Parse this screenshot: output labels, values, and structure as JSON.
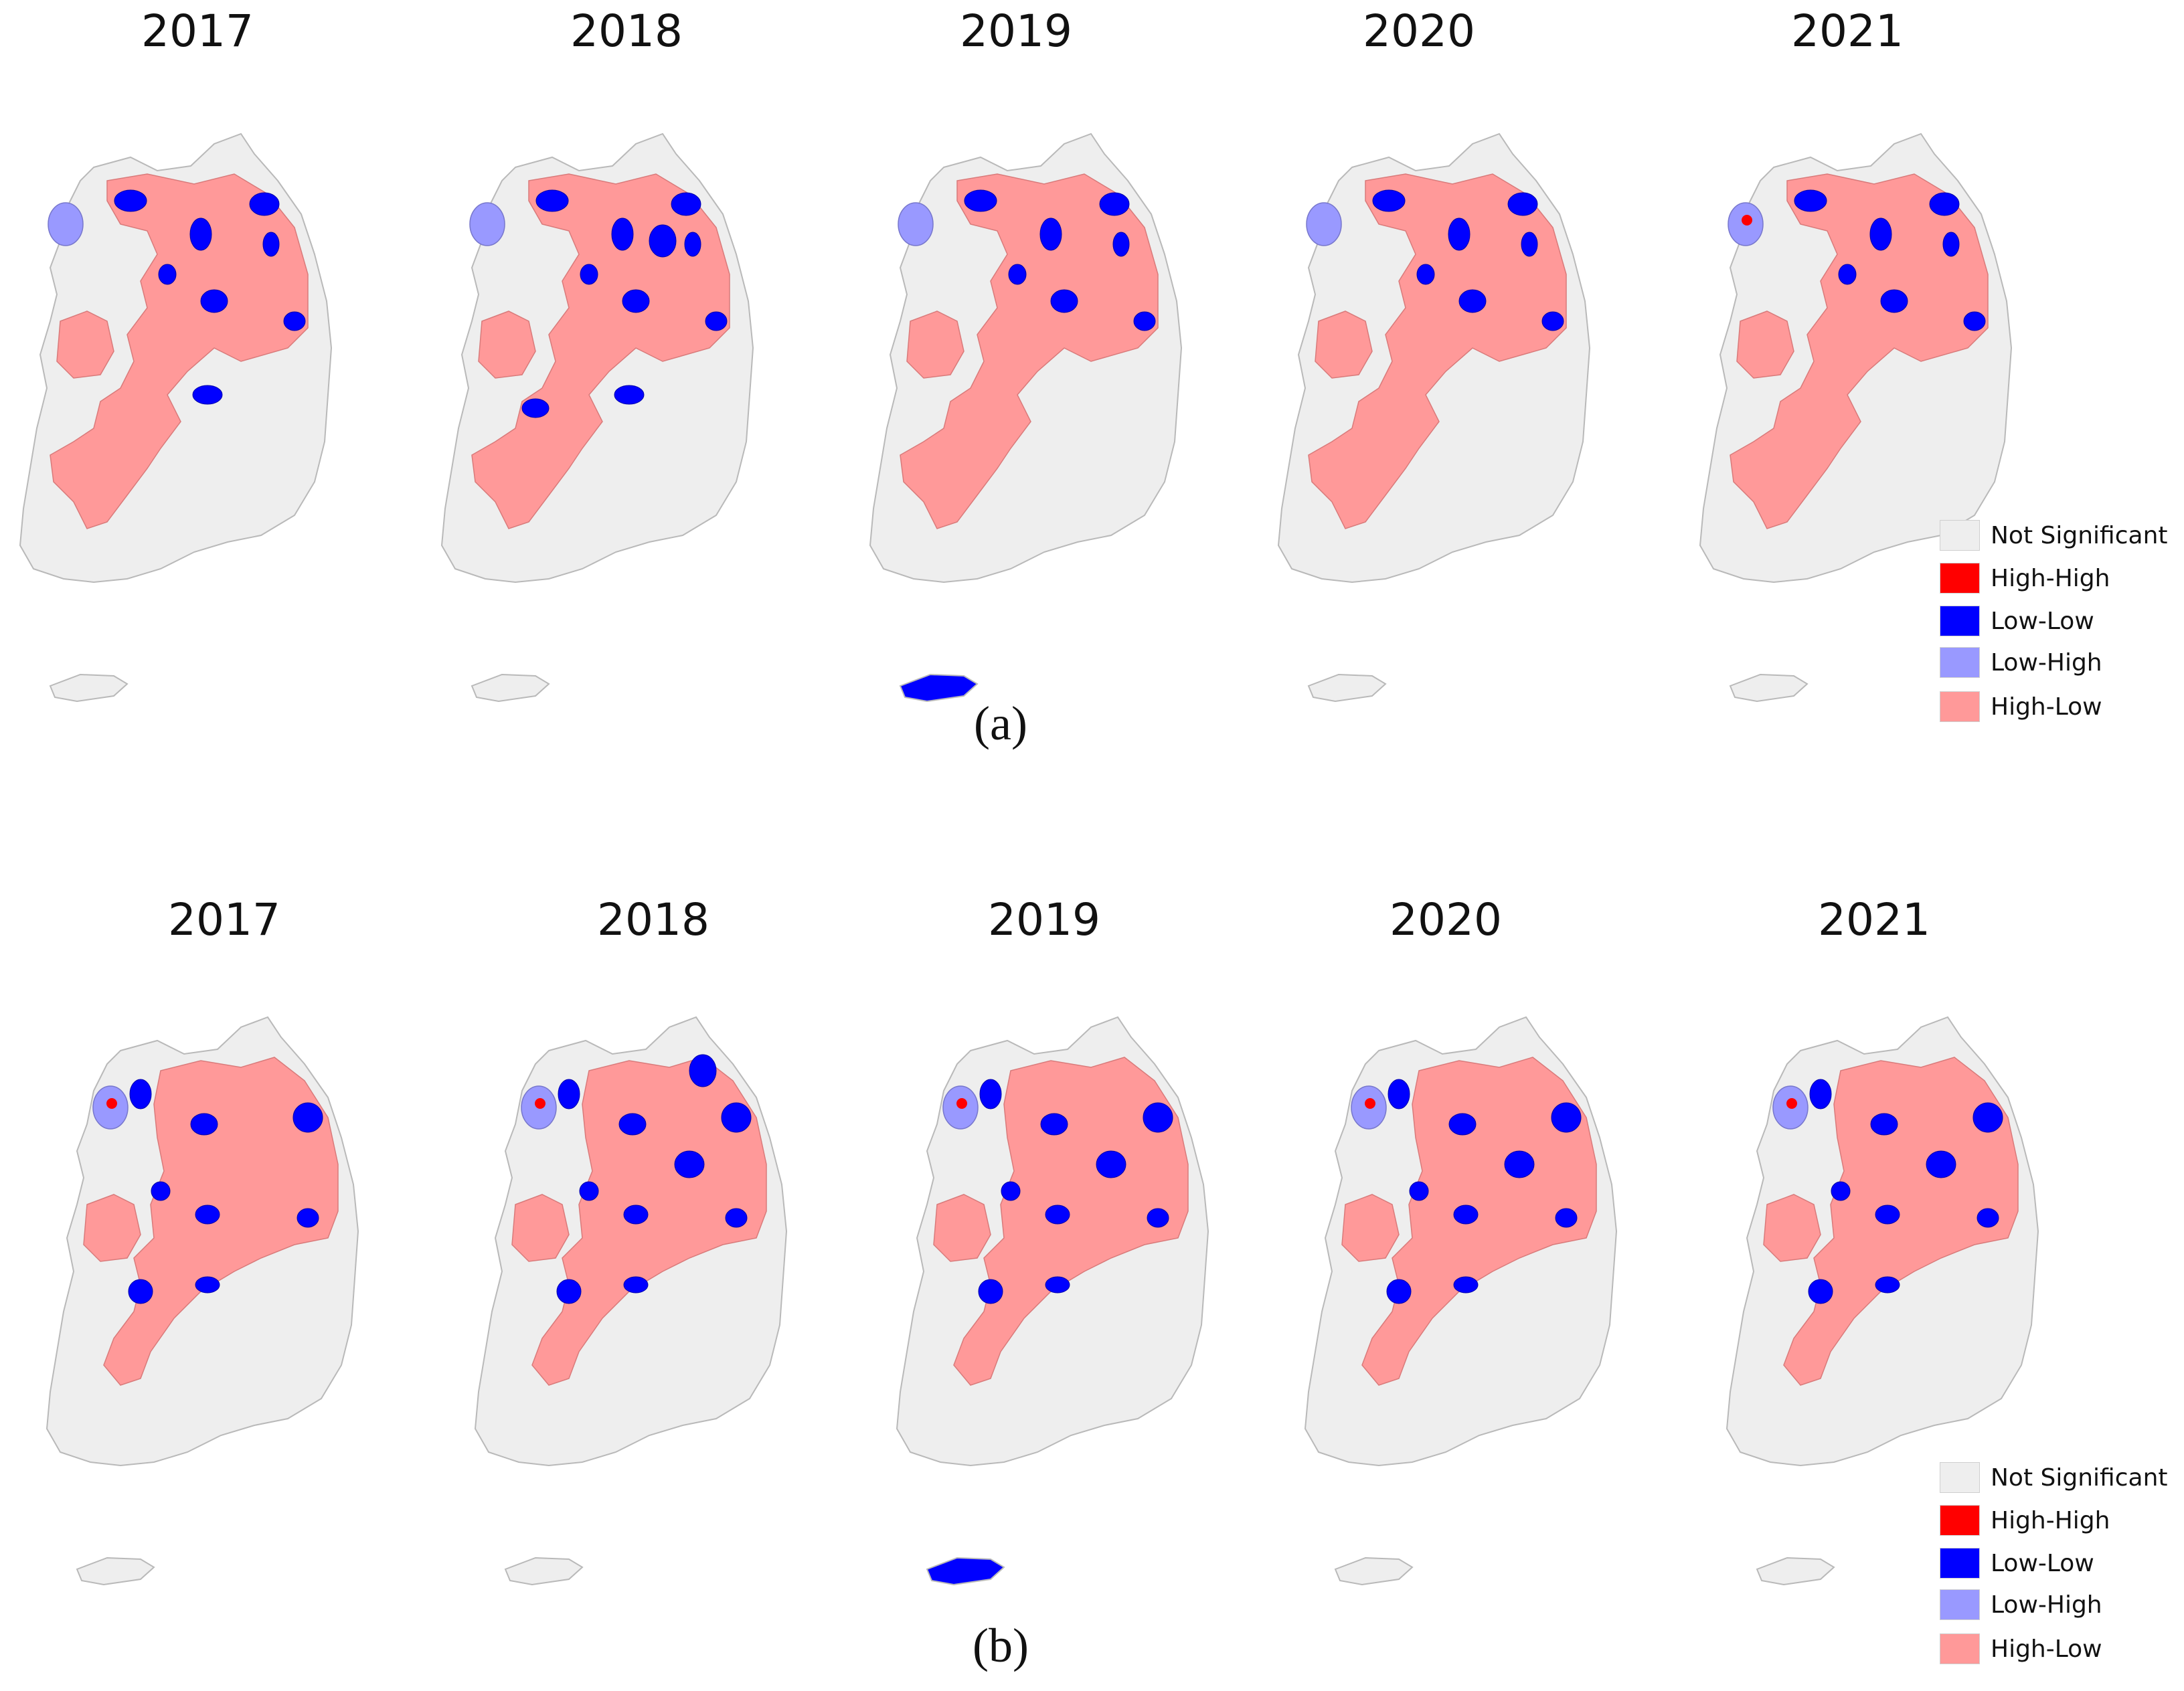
{
  "colors": {
    "Not Significant": "#eeeeee",
    "High-High": "#ff0000",
    "Low-Low": "#0000ff",
    "Low-High": "#9999ff",
    "High-Low": "#ff9999",
    "boundary": "#b9b9b9"
  },
  "legend": [
    "Not Significant",
    "High-High",
    "Low-Low",
    "Low-High",
    "High-Low"
  ],
  "panels": [
    {
      "caption": "(a)",
      "maps": [
        {
          "year": "2017",
          "blue_count": 8,
          "red_center": false,
          "jeju": "Not Significant"
        },
        {
          "year": "2018",
          "blue_count": 10,
          "red_center": false,
          "jeju": "Not Significant"
        },
        {
          "year": "2019",
          "blue_count": 7,
          "red_center": false,
          "jeju": "Low-Low"
        },
        {
          "year": "2020",
          "blue_count": 7,
          "red_center": false,
          "jeju": "Not Significant"
        },
        {
          "year": "2021",
          "blue_count": 7,
          "red_center": true,
          "jeju": "Not Significant"
        }
      ]
    },
    {
      "caption": "(b)",
      "maps": [
        {
          "year": "2017",
          "blue_count": 8,
          "red_center": true,
          "jeju": "Not Significant"
        },
        {
          "year": "2018",
          "blue_count": 10,
          "red_center": true,
          "jeju": "Not Significant"
        },
        {
          "year": "2019",
          "blue_count": 9,
          "red_center": true,
          "jeju": "Low-Low"
        },
        {
          "year": "2020",
          "blue_count": 9,
          "red_center": true,
          "jeju": "Not Significant"
        },
        {
          "year": "2021",
          "blue_count": 9,
          "red_center": true,
          "jeju": "Not Significant"
        }
      ]
    }
  ]
}
